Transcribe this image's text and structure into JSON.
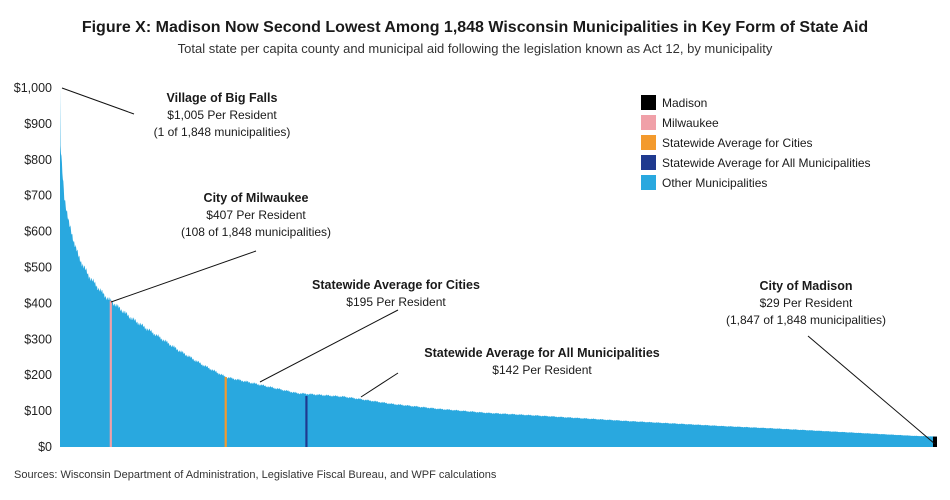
{
  "header": {
    "title": "Figure X: Madison Now Second Lowest Among 1,848 Wisconsin Municipalities in Key Form of State Aid",
    "subtitle": "Total state per capita county and municipal aid following the legislation known as Act 12, by municipality"
  },
  "footer": {
    "source": "Sources: Wisconsin Department of Administration, Legislative Fiscal Bureau, and WPF calculations"
  },
  "colors": {
    "madison": "#000000",
    "milwaukee": "#f0a0a8",
    "city_avg": "#f39a2d",
    "all_avg": "#1f3a8f",
    "other": "#29a8df"
  },
  "chart_data": {
    "type": "bar",
    "ylim": [
      0,
      1000
    ],
    "y_ticks": [
      "$0",
      "$100",
      "$200",
      "$300",
      "$400",
      "$500",
      "$600",
      "$700",
      "$800",
      "$900",
      "$1,000"
    ],
    "municipality_count": 1848,
    "approx_distribution": {
      "rank": [
        1,
        2,
        5,
        10,
        20,
        40,
        60,
        80,
        100,
        108,
        150,
        200,
        250,
        300,
        350,
        400,
        450,
        500,
        600,
        700,
        800,
        900,
        1000,
        1100,
        1200,
        1300,
        1400,
        1500,
        1600,
        1700,
        1800,
        1847,
        1848
      ],
      "per_resident": [
        1005,
        840,
        780,
        700,
        620,
        530,
        480,
        445,
        415,
        407,
        360,
        315,
        270,
        230,
        195,
        180,
        165,
        150,
        140,
        120,
        106,
        95,
        88,
        80,
        72,
        65,
        58,
        52,
        45,
        38,
        31,
        29,
        28
      ]
    },
    "highlights": [
      {
        "name": "Madison",
        "rank": 1847,
        "value": 29
      },
      {
        "name": "Milwaukee",
        "rank": 108,
        "value": 407
      },
      {
        "name": "Statewide Average for Cities",
        "rank": 350,
        "value": 195
      },
      {
        "name": "Statewide Average for All Municipalities",
        "rank": 520,
        "value": 142
      }
    ],
    "legend": {
      "position": "top-right",
      "items": [
        "Madison",
        "Milwaukee",
        "Statewide Average for Cities",
        "Statewide Average for All Municipalities",
        "Other Municipalities"
      ]
    },
    "annotations": [
      {
        "title": "Village of Big Falls",
        "line1": "$1,005 Per Resident",
        "line2": "(1 of 1,848 municipalities)"
      },
      {
        "title": "City of Milwaukee",
        "line1": "$407 Per Resident",
        "line2": "(108 of 1,848 municipalities)"
      },
      {
        "title": "Statewide Average for Cities",
        "line1": "$195 Per Resident",
        "line2": ""
      },
      {
        "title": "Statewide Average for All Municipalities",
        "line1": "$142 Per Resident",
        "line2": ""
      },
      {
        "title": "City of Madison",
        "line1": "$29 Per Resident",
        "line2": "(1,847 of 1,848 municipalities)"
      }
    ]
  }
}
